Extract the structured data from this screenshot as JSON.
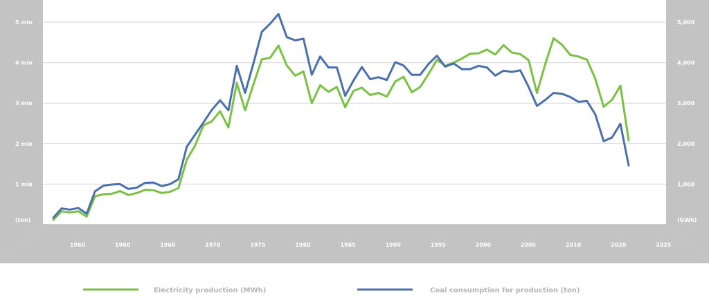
{
  "chart_data": {
    "type": "line",
    "left_axis": {
      "unit_label": "(ton)",
      "ticks": [
        "1 mio",
        "2 mio",
        "3 mio",
        "4 mio",
        "5 mio"
      ],
      "range": [
        0,
        5000000
      ]
    },
    "right_axis": {
      "unit_label": "(GWh)",
      "ticks": [
        "1,000",
        "2,000",
        "3,000",
        "4,000",
        "5,000"
      ],
      "range": [
        0,
        5000
      ]
    },
    "x_ticks": [
      "1960",
      "1960",
      "1960",
      "1970",
      "1975",
      "1980",
      "1985",
      "1990",
      "1995",
      "2000",
      "2005",
      "2010",
      "2020",
      "2025"
    ],
    "grid": true,
    "legend_position": "bottom",
    "colors": {
      "electricity": "#7ac143",
      "coal": "#4a6fae",
      "frame": "#c2c3c2",
      "grid": "#d7d7d7",
      "tick_text": "#ffffff",
      "legend_text": "#b5b5b5"
    },
    "series": [
      {
        "name": "Electricity production (MWh)",
        "values": [
          120,
          330,
          300,
          330,
          200,
          700,
          750,
          760,
          830,
          730,
          780,
          860,
          850,
          780,
          810,
          900,
          1600,
          1950,
          2450,
          2550,
          2800,
          2400,
          3500,
          2820,
          3460,
          4080,
          4120,
          4420,
          3930,
          3680,
          3780,
          3000,
          3440,
          3280,
          3400,
          2900,
          3300,
          3380,
          3200,
          3250,
          3160,
          3530,
          3650,
          3270,
          3400,
          3720,
          4070,
          3920,
          4000,
          4100,
          4220,
          4230,
          4320,
          4200,
          4430,
          4250,
          4210,
          4060,
          3250,
          3970,
          4600,
          4440,
          4190,
          4150,
          4070,
          3600,
          2910,
          3080,
          3430,
          2080
        ]
      },
      {
        "name": "Coal consumption for production (ton)",
        "values": [
          170000,
          400000,
          370000,
          410000,
          270000,
          820000,
          960000,
          990000,
          1000000,
          880000,
          910000,
          1030000,
          1040000,
          950000,
          1000000,
          1120000,
          1920000,
          2220000,
          2520000,
          2830000,
          3070000,
          2820000,
          3920000,
          3250000,
          3980000,
          4760000,
          4960000,
          5200000,
          4630000,
          4550000,
          4590000,
          3700000,
          4150000,
          3880000,
          3880000,
          3180000,
          3560000,
          3890000,
          3590000,
          3640000,
          3570000,
          4010000,
          3930000,
          3700000,
          3700000,
          3970000,
          4170000,
          3900000,
          3980000,
          3840000,
          3840000,
          3920000,
          3880000,
          3680000,
          3800000,
          3770000,
          3810000,
          3400000,
          2930000,
          3080000,
          3250000,
          3230000,
          3150000,
          3030000,
          3050000,
          2720000,
          2060000,
          2150000,
          2490000,
          1460000
        ]
      }
    ]
  }
}
